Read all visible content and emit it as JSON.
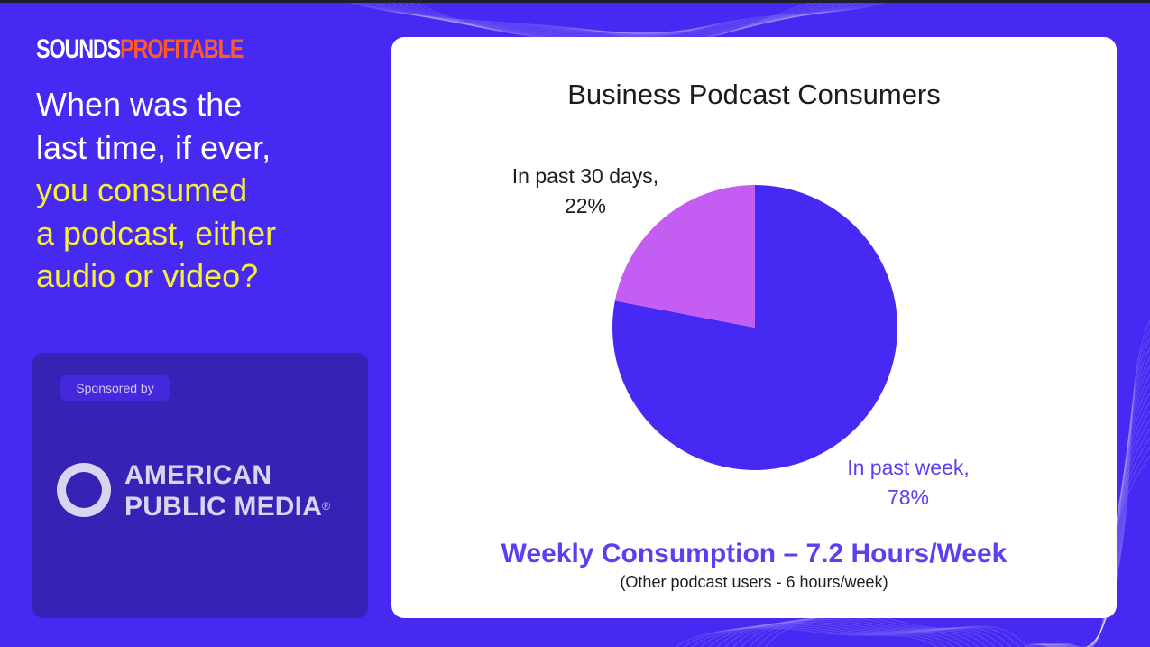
{
  "brand": {
    "part1": "SOUNDS",
    "part2": "PROFITABLE"
  },
  "question": {
    "line1": "When was the",
    "line2": "last time, if ever,",
    "line3": "you consumed",
    "line4": "a podcast, either",
    "line5": "audio or video?"
  },
  "sponsor": {
    "label": "Sponsored by",
    "name_line1": "AMERICAN",
    "name_line2": "PUBLIC MEDIA",
    "registered": "®"
  },
  "chart_data": {
    "type": "pie",
    "title": "Business Podcast Consumers",
    "slices": [
      {
        "label_line1": "In past week,",
        "label_line2": "78%",
        "value": 78,
        "color": "#4629f2"
      },
      {
        "label_line1": "In past 30 days,",
        "label_line2": "22%",
        "value": 22,
        "color": "#c45ef2"
      }
    ]
  },
  "footer": {
    "weekly": "Weekly Consumption – 7.2 Hours/Week",
    "other": "(Other podcast users - 6 hours/week)"
  },
  "colors": {
    "background": "#4629f2",
    "highlight": "#f7ef3a",
    "brand_accent": "#ff5a2a",
    "sponsor_card": "#3423b4"
  }
}
